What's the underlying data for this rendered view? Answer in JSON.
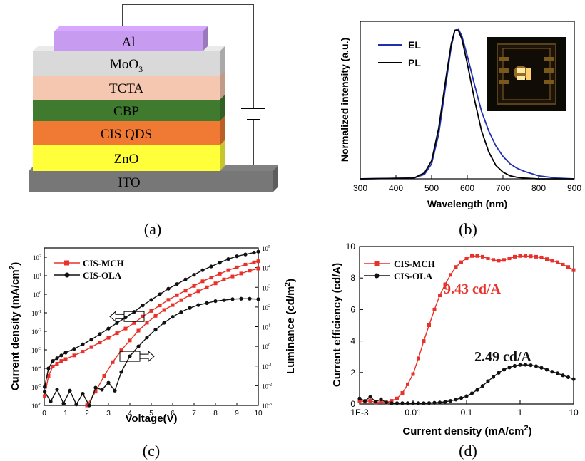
{
  "panel_labels": {
    "a": "(a)",
    "b": "(b)",
    "c": "(c)",
    "d": "(d)"
  },
  "device_layers": [
    {
      "label": "Al",
      "color": "#c79cf0",
      "sub": ""
    },
    {
      "label": "MoO",
      "sub": "3",
      "color": "#d9d9d9"
    },
    {
      "label": "TCTA",
      "sub": "",
      "color": "#f6c7b0"
    },
    {
      "label": "CBP",
      "sub": "",
      "color": "#3f7a2f"
    },
    {
      "label": "CIS QDS",
      "sub": "",
      "color": "#f07a34"
    },
    {
      "label": "ZnO",
      "sub": "",
      "color": "#ffff3a"
    },
    {
      "label": "ITO",
      "sub": "",
      "color": "#777777"
    }
  ],
  "chart_data": [
    {
      "panel": "b",
      "type": "line",
      "xlabel": "Wavelength (nm)",
      "ylabel": "Normalized intensity (a.u.)",
      "xlim": [
        300,
        900
      ],
      "xticks": [
        "300",
        "400",
        "500",
        "600",
        "700",
        "800",
        "900"
      ],
      "ylim": [
        0,
        1.05
      ],
      "legend_position": "top-left",
      "inset": "device photo",
      "series": [
        {
          "name": "EL",
          "color": "#1f2fb0",
          "x": [
            300,
            450,
            480,
            500,
            520,
            540,
            555,
            565,
            575,
            585,
            600,
            620,
            640,
            660,
            680,
            700,
            720,
            740,
            760,
            800,
            850,
            900
          ],
          "y": [
            0,
            0.005,
            0.03,
            0.1,
            0.3,
            0.63,
            0.88,
            0.99,
            1.0,
            0.95,
            0.82,
            0.63,
            0.45,
            0.32,
            0.22,
            0.15,
            0.1,
            0.07,
            0.05,
            0.02,
            0.005,
            0
          ]
        },
        {
          "name": "PL",
          "color": "#000000",
          "x": [
            300,
            450,
            480,
            500,
            520,
            540,
            555,
            565,
            575,
            585,
            600,
            620,
            640,
            660,
            680,
            700,
            720,
            740,
            760,
            800,
            850,
            900
          ],
          "y": [
            0,
            0.005,
            0.04,
            0.12,
            0.34,
            0.67,
            0.9,
            0.99,
            0.99,
            0.93,
            0.77,
            0.53,
            0.32,
            0.18,
            0.09,
            0.045,
            0.02,
            0.01,
            0.005,
            0,
            0,
            0
          ]
        }
      ]
    },
    {
      "panel": "c",
      "type": "line",
      "xlabel": "Voltage(V)",
      "ylabel": "Current density (mA/cm",
      "ylabel_sup": "2",
      "ylabel_close": ")",
      "y2label": "Luminance (cd/m",
      "y2label_sup": "2",
      "y2label_close": ")",
      "xlim": [
        0,
        10
      ],
      "xticks": [
        "0",
        "1",
        "2",
        "3",
        "4",
        "5",
        "6",
        "7",
        "8",
        "9",
        "10"
      ],
      "ylim_log": [
        -6,
        2.5
      ],
      "yticks_exp": [
        "-6",
        "-5",
        "-4",
        "-3",
        "-2",
        "-1",
        "0",
        "1",
        "2"
      ],
      "y2lim_log": [
        -3,
        5
      ],
      "y2ticks_exp": [
        "-3",
        "-2",
        "-1",
        "0",
        "1",
        "2",
        "3",
        "4",
        "5"
      ],
      "tick_base": "10",
      "legend_position": "top-left",
      "series": [
        {
          "name": "CIS-MCH",
          "color": "#e8312a",
          "marker": "square",
          "axis": "left",
          "x": [
            0.02,
            0.2,
            0.4,
            0.6,
            0.8,
            1.0,
            1.4,
            1.8,
            2.2,
            2.6,
            3.0,
            3.4,
            3.8,
            4.2,
            4.6,
            5.0,
            5.4,
            5.8,
            6.2,
            6.6,
            7.0,
            7.4,
            7.8,
            8.2,
            8.6,
            9.0,
            9.4,
            9.8,
            10.0
          ],
          "y": [
            -5.5,
            -4.4,
            -3.9,
            -3.75,
            -3.6,
            -3.5,
            -3.3,
            -3.1,
            -2.85,
            -2.6,
            -2.35,
            -2.1,
            -1.85,
            -1.55,
            -1.2,
            -0.9,
            -0.6,
            -0.3,
            -0.05,
            0.2,
            0.45,
            0.7,
            0.9,
            1.1,
            1.3,
            1.45,
            1.6,
            1.72,
            1.78
          ]
        },
        {
          "name": "CIS-MCH",
          "color": "#e8312a",
          "marker": "square",
          "axis": "right",
          "x": [
            2.0,
            2.4,
            2.8,
            3.2,
            3.6,
            4.0,
            4.4,
            4.8,
            5.2,
            5.6,
            6.0,
            6.4,
            6.8,
            7.2,
            7.6,
            8.0,
            8.4,
            8.8,
            9.2,
            9.6,
            10.0
          ],
          "y": [
            -3.0,
            -2.3,
            -1.5,
            -0.8,
            -0.2,
            0.3,
            0.8,
            1.2,
            1.55,
            1.85,
            2.1,
            2.35,
            2.6,
            2.8,
            3.0,
            3.2,
            3.4,
            3.55,
            3.7,
            3.85,
            3.95
          ]
        },
        {
          "name": "CIS-OLA",
          "color": "#111111",
          "marker": "circle",
          "axis": "left",
          "x": [
            0.02,
            0.2,
            0.4,
            0.6,
            0.8,
            1.0,
            1.4,
            1.8,
            2.2,
            2.6,
            3.0,
            3.4,
            3.8,
            4.2,
            4.6,
            5.0,
            5.4,
            5.8,
            6.2,
            6.6,
            7.0,
            7.4,
            7.8,
            8.2,
            8.6,
            9.0,
            9.4,
            9.8,
            10.0
          ],
          "y": [
            -5.0,
            -4.0,
            -3.6,
            -3.45,
            -3.3,
            -3.15,
            -2.95,
            -2.7,
            -2.45,
            -2.15,
            -1.85,
            -1.55,
            -1.25,
            -0.95,
            -0.6,
            -0.3,
            0.0,
            0.3,
            0.55,
            0.8,
            1.05,
            1.3,
            1.5,
            1.7,
            1.9,
            2.05,
            2.15,
            2.25,
            2.3
          ]
        },
        {
          "name": "CIS-OLA",
          "color": "#111111",
          "marker": "circle",
          "axis": "right",
          "x": [
            0.02,
            0.3,
            0.6,
            0.9,
            1.2,
            1.5,
            1.8,
            2.1,
            2.4,
            2.7,
            3.0,
            3.3,
            3.6,
            4.0,
            4.4,
            4.8,
            5.2,
            5.6,
            6.0,
            6.4,
            6.8,
            7.2,
            7.6,
            8.0,
            8.4,
            8.8,
            9.2,
            9.6,
            10.0
          ],
          "y": [
            -2.3,
            -2.8,
            -2.2,
            -2.9,
            -2.25,
            -2.95,
            -2.4,
            -3.0,
            -2.1,
            -2.2,
            -1.85,
            -2.25,
            -1.3,
            -0.5,
            0.0,
            0.45,
            0.85,
            1.2,
            1.5,
            1.75,
            1.95,
            2.1,
            2.2,
            2.3,
            2.35,
            2.4,
            2.42,
            2.42,
            2.4
          ]
        }
      ],
      "annotations": [
        {
          "direction": "left",
          "x": 4.2,
          "y": -1.2,
          "axis": "left"
        },
        {
          "direction": "right",
          "x": 4.0,
          "y": -3.35,
          "axis": "left"
        }
      ]
    },
    {
      "panel": "d",
      "type": "line",
      "xlabel": "Current density (mA/cm",
      "xlabel_sup": "2",
      "xlabel_close": ")",
      "ylabel": "Current efficiency (cd/A)",
      "xlim_log": [
        -3,
        1
      ],
      "xticks": [
        "1E-3",
        "0.01",
        "0.1",
        "1",
        "10"
      ],
      "ylim": [
        0,
        10
      ],
      "yticks": [
        "0",
        "2",
        "4",
        "6",
        "8",
        "10"
      ],
      "legend_position": "top-left",
      "series": [
        {
          "name": "CIS-MCH",
          "color": "#e8312a",
          "marker": "square",
          "x": [
            -3.0,
            -2.9,
            -2.8,
            -2.7,
            -2.6,
            -2.5,
            -2.4,
            -2.3,
            -2.2,
            -2.1,
            -2.0,
            -1.9,
            -1.8,
            -1.7,
            -1.6,
            -1.5,
            -1.4,
            -1.3,
            -1.2,
            -1.1,
            -1.0,
            -0.9,
            -0.8,
            -0.7,
            -0.6,
            -0.5,
            -0.4,
            -0.3,
            -0.2,
            -0.1,
            0.0,
            0.1,
            0.2,
            0.3,
            0.4,
            0.5,
            0.6,
            0.7,
            0.8,
            0.9,
            1.0
          ],
          "y": [
            0.2,
            0.15,
            0.2,
            0.1,
            0.15,
            0.1,
            0.2,
            0.35,
            0.7,
            1.25,
            1.9,
            2.9,
            4.0,
            5.0,
            6.0,
            6.9,
            7.6,
            8.2,
            8.7,
            9.0,
            9.25,
            9.4,
            9.4,
            9.35,
            9.25,
            9.15,
            9.1,
            9.15,
            9.25,
            9.35,
            9.4,
            9.4,
            9.38,
            9.35,
            9.3,
            9.2,
            9.1,
            9.0,
            8.85,
            8.7,
            8.5
          ]
        },
        {
          "name": "CIS-OLA",
          "color": "#111111",
          "marker": "circle",
          "x": [
            -3.0,
            -2.9,
            -2.8,
            -2.7,
            -2.6,
            -2.5,
            -2.4,
            -2.3,
            -2.2,
            -2.1,
            -2.0,
            -1.9,
            -1.8,
            -1.7,
            -1.6,
            -1.5,
            -1.4,
            -1.3,
            -1.2,
            -1.1,
            -1.0,
            -0.9,
            -0.8,
            -0.7,
            -0.6,
            -0.5,
            -0.4,
            -0.3,
            -0.2,
            -0.1,
            0.0,
            0.1,
            0.2,
            0.3,
            0.4,
            0.5,
            0.6,
            0.7,
            0.8,
            0.9,
            1.0
          ],
          "y": [
            0.35,
            0.2,
            0.45,
            0.15,
            0.3,
            0.1,
            0.05,
            0.05,
            0.05,
            0.05,
            0.05,
            0.05,
            0.05,
            0.06,
            0.08,
            0.1,
            0.14,
            0.2,
            0.28,
            0.38,
            0.5,
            0.68,
            0.9,
            1.15,
            1.45,
            1.72,
            1.98,
            2.18,
            2.32,
            2.42,
            2.48,
            2.49,
            2.46,
            2.4,
            2.3,
            2.18,
            2.05,
            1.95,
            1.82,
            1.7,
            1.58
          ]
        }
      ],
      "annotations": [
        {
          "text": "9.43 cd/A",
          "color": "#e8312a"
        },
        {
          "text": "2.49 cd/A",
          "color": "#111111"
        }
      ]
    }
  ]
}
